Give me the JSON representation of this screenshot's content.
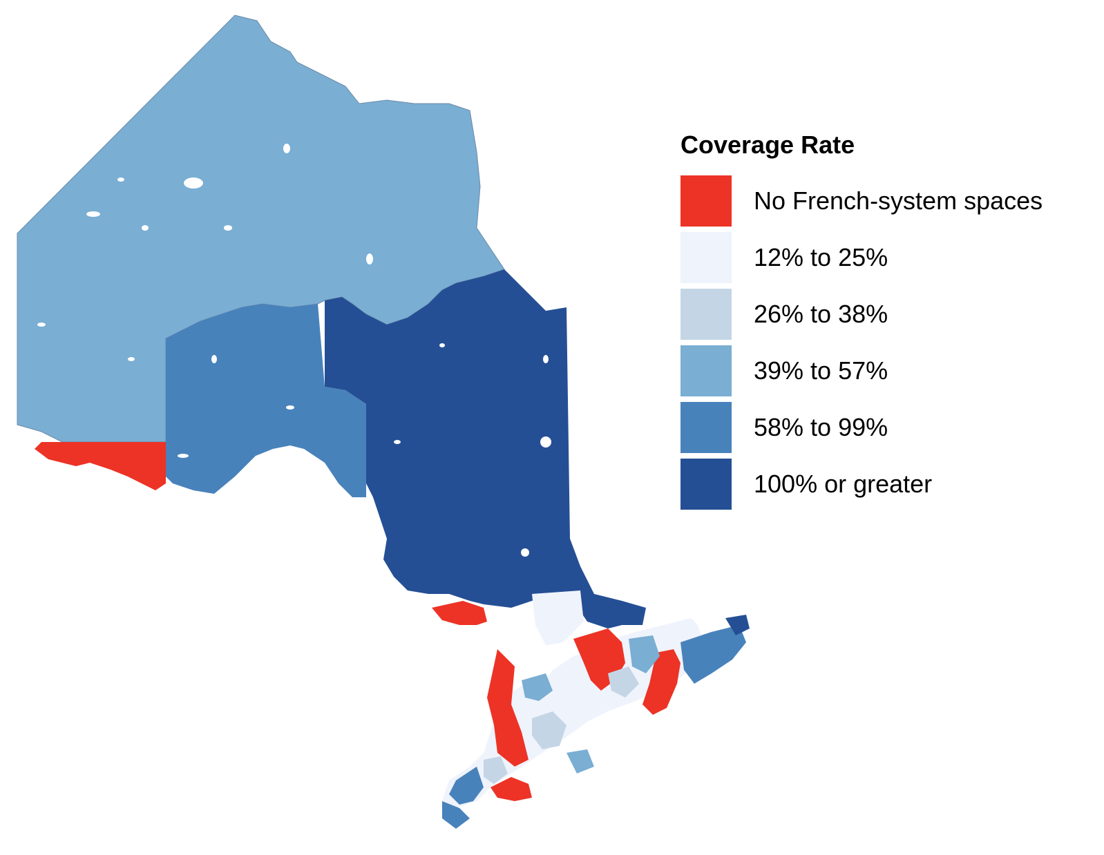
{
  "legend": {
    "title": "Coverage Rate",
    "items": [
      {
        "label": "No French-system spaces",
        "color": "#ec3326"
      },
      {
        "label": "12% to 25%",
        "color": "#eff3fb"
      },
      {
        "label": "26% to 38%",
        "color": "#c4d6e6"
      },
      {
        "label": "39% to 57%",
        "color": "#7aaed3"
      },
      {
        "label": "58% to 99%",
        "color": "#4882bb"
      },
      {
        "label": "100% or greater",
        "color": "#254f95"
      }
    ]
  },
  "map_regions": [
    {
      "name": "northwest-region",
      "category": "39% to 57%"
    },
    {
      "name": "central-north-region",
      "category": "58% to 99%"
    },
    {
      "name": "northeast-region",
      "category": "100% or greater"
    },
    {
      "name": "southwest-border-region",
      "category": "No French-system spaces"
    },
    {
      "name": "southern-ontario-regions",
      "category": "mixed"
    }
  ]
}
